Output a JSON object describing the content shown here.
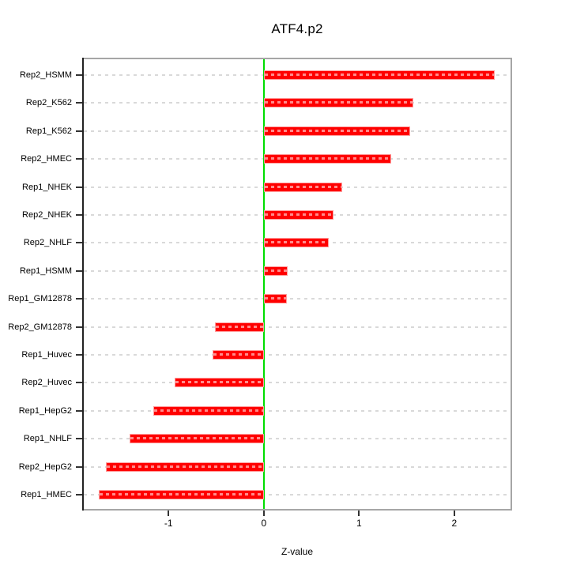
{
  "title": "ATF4.p2",
  "xlabel": "Z-value",
  "chart_data": {
    "type": "bar",
    "orientation": "horizontal",
    "title": "ATF4.p2",
    "xlabel": "Z-value",
    "ylabel": "",
    "categories": [
      "Rep2_HSMM",
      "Rep2_K562",
      "Rep1_K562",
      "Rep2_HMEC",
      "Rep1_NHEK",
      "Rep2_NHEK",
      "Rep2_NHLF",
      "Rep1_HSMM",
      "Rep1_GM12878",
      "Rep2_GM12878",
      "Rep1_Huvec",
      "Rep2_Huvec",
      "Rep1_HepG2",
      "Rep1_NHLF",
      "Rep2_HepG2",
      "Rep1_HMEC"
    ],
    "values": [
      2.42,
      1.57,
      1.54,
      1.34,
      0.82,
      0.73,
      0.68,
      0.25,
      0.24,
      -0.51,
      -0.54,
      -0.94,
      -1.16,
      -1.41,
      -1.66,
      -1.73
    ],
    "xlim": [
      -1.89,
      2.59
    ],
    "x_tick_values": [
      -1,
      0,
      1,
      2
    ],
    "x_tick_labels": [
      "-1",
      "0",
      "1",
      "2"
    ],
    "grid": "horizontal dashed gridline per category",
    "legend": "none",
    "zero_reference_line": 0
  },
  "colors": {
    "bar_fill": "#ff0000",
    "bar_border": "#ff9e9e",
    "zero_line": "#00dd00",
    "gridline": "#d9d9d9",
    "box_border": "#a6a6a6",
    "axis_line": "#222222",
    "text": "#000000",
    "background": "#ffffff"
  }
}
